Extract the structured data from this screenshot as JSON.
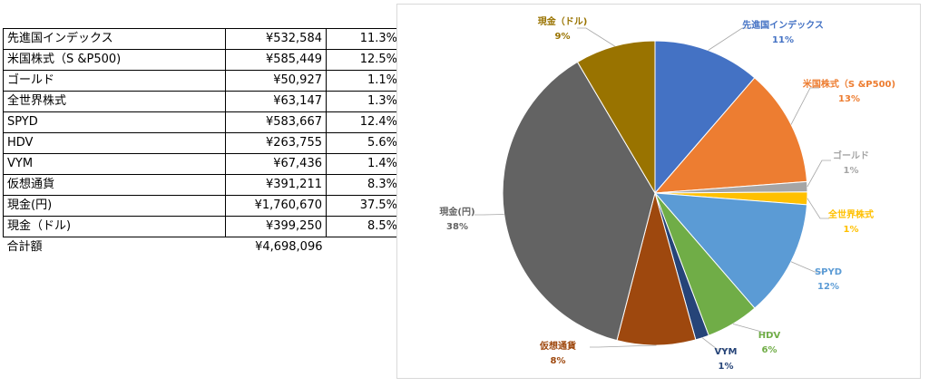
{
  "table": {
    "rows": [
      {
        "name": "先進国インデックス",
        "amount": "¥532,584",
        "pct": "11.3%"
      },
      {
        "name": "米国株式（S &P500)",
        "amount": "¥585,449",
        "pct": "12.5%"
      },
      {
        "name": "ゴールド",
        "amount": "¥50,927",
        "pct": "1.1%"
      },
      {
        "name": "全世界株式",
        "amount": "¥63,147",
        "pct": "1.3%"
      },
      {
        "name": "SPYD",
        "amount": "¥583,667",
        "pct": "12.4%"
      },
      {
        "name": "HDV",
        "amount": "¥263,755",
        "pct": "5.6%"
      },
      {
        "name": "VYM",
        "amount": "¥67,436",
        "pct": "1.4%"
      },
      {
        "name": "仮想通貨",
        "amount": "¥391,211",
        "pct": "8.3%"
      },
      {
        "name": "現金(円)",
        "amount": "¥1,760,670",
        "pct": "37.5%"
      },
      {
        "name": "現金（ドル)",
        "amount": "¥399,250",
        "pct": "8.5%"
      }
    ],
    "total_label": "合計額",
    "total_amount": "¥4,698,096"
  },
  "chart_data": {
    "type": "pie",
    "slices": [
      {
        "label": "先進国インデックス",
        "value": 532584,
        "pct_label": "11%",
        "color": "#4472C4"
      },
      {
        "label": "米国株式（S &P500)",
        "value": 585449,
        "pct_label": "13%",
        "color": "#ED7D31"
      },
      {
        "label": "ゴールド",
        "value": 50927,
        "pct_label": "1%",
        "color": "#A5A5A5"
      },
      {
        "label": "全世界株式",
        "value": 63147,
        "pct_label": "1%",
        "color": "#FFC000"
      },
      {
        "label": "SPYD",
        "value": 583667,
        "pct_label": "12%",
        "color": "#5B9BD5"
      },
      {
        "label": "HDV",
        "value": 263755,
        "pct_label": "6%",
        "color": "#70AD47"
      },
      {
        "label": "VYM",
        "value": 67436,
        "pct_label": "1%",
        "color": "#264478"
      },
      {
        "label": "仮想通貨",
        "value": 391211,
        "pct_label": "8%",
        "color": "#9E480E"
      },
      {
        "label": "現金(円)",
        "value": 1760670,
        "pct_label": "38%",
        "color": "#636363"
      },
      {
        "label": "現金（ドル)",
        "value": 399250,
        "pct_label": "9%",
        "color": "#997300"
      }
    ],
    "legend": "none"
  }
}
